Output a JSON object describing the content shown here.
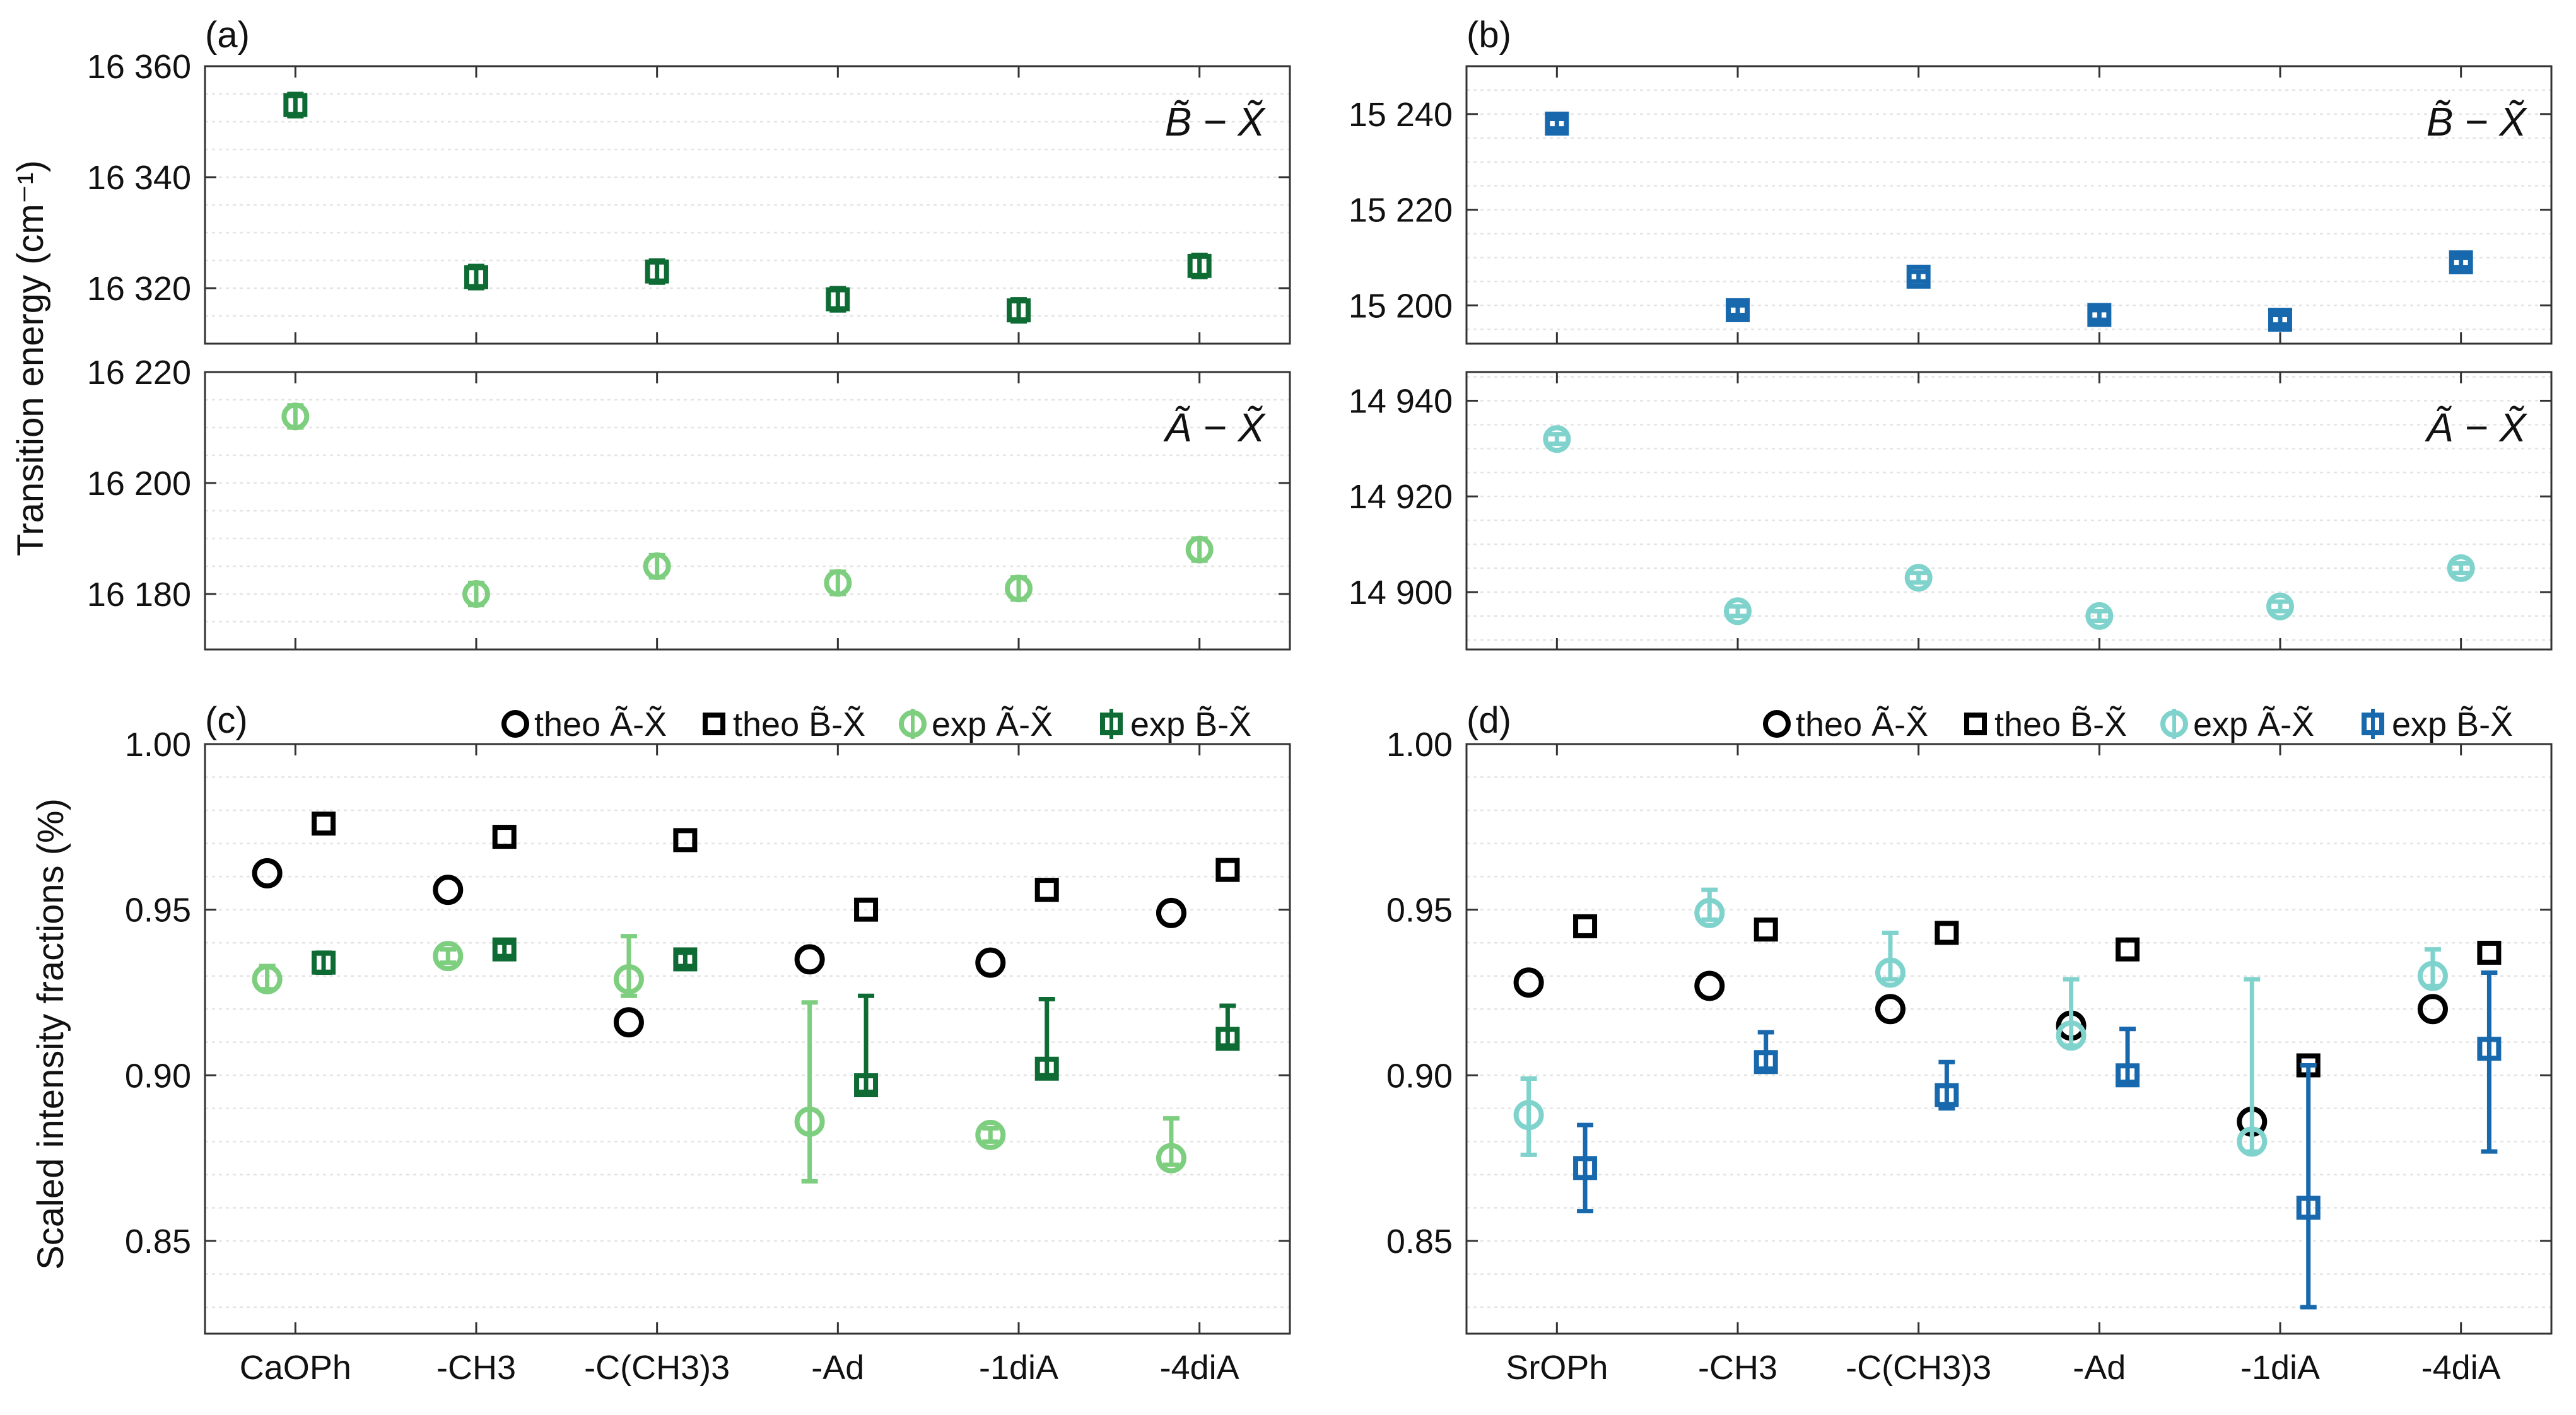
{
  "colors": {
    "ca_B": "#0e6b34",
    "ca_A": "#7dce7f",
    "sr_B": "#1768ac",
    "sr_A": "#7fd3cc",
    "theo": "#000000",
    "grid": "#e4e4e4",
    "axis": "#333333"
  },
  "chart_data": [
    {
      "id": "a",
      "panel_label": "(a)",
      "type": "scatter",
      "ylabel": "Transition energy (cm⁻¹)",
      "categories": [
        "CaOPh",
        "-CH3",
        "-C(CH3)3",
        "-Ad",
        "-1diA",
        "-4diA"
      ],
      "subplots": [
        {
          "annotation": "B̃ − X̃",
          "ylim": [
            16310,
            16360
          ],
          "yticks": [
            16320,
            16340,
            16360
          ],
          "ytick_labels": [
            "16 320",
            "16 340",
            "16 360"
          ],
          "series": [
            {
              "name": "exp B̃-X̃",
              "marker": "square",
              "color": "ca_B",
              "values": [
                16353,
                16322,
                16323,
                16318,
                16316,
                16324
              ],
              "err": [
                2,
                2,
                2,
                2,
                2,
                2
              ]
            }
          ]
        },
        {
          "annotation": "Ã − X̃",
          "ylim": [
            16170,
            16220
          ],
          "yticks": [
            16180,
            16200,
            16220
          ],
          "ytick_labels": [
            "16 180",
            "16 200",
            "16 220"
          ],
          "series": [
            {
              "name": "exp Ã-X̃",
              "marker": "circle",
              "color": "ca_A",
              "values": [
                16212,
                16180,
                16185,
                16182,
                16181,
                16188
              ],
              "err": [
                2,
                2,
                2,
                2,
                2,
                2
              ]
            }
          ]
        }
      ]
    },
    {
      "id": "b",
      "panel_label": "(b)",
      "type": "scatter",
      "categories": [
        "SrOPh",
        "-CH3",
        "-C(CH3)3",
        "-Ad",
        "-1diA",
        "-4diA"
      ],
      "subplots": [
        {
          "annotation": "B̃ − X̃",
          "ylim": [
            15192,
            15250
          ],
          "yticks": [
            15200,
            15220,
            15240
          ],
          "ytick_labels": [
            "15 200",
            "15 220",
            "15 240"
          ],
          "series": [
            {
              "name": "exp B̃-X̃",
              "marker": "square",
              "color": "sr_B",
              "values": [
                15238,
                15199,
                15206,
                15198,
                15197,
                15209
              ],
              "err": [
                1,
                1,
                1,
                1,
                1,
                1
              ]
            }
          ]
        },
        {
          "annotation": "Ã − X̃",
          "ylim": [
            14888,
            14946
          ],
          "yticks": [
            14900,
            14920,
            14940
          ],
          "ytick_labels": [
            "14 900",
            "14 920",
            "14 940"
          ],
          "series": [
            {
              "name": "exp Ã-X̃",
              "marker": "circle",
              "color": "sr_A",
              "values": [
                14932,
                14896,
                14903,
                14895,
                14897,
                14905
              ],
              "err": [
                1,
                1,
                1,
                1,
                1,
                1
              ]
            }
          ]
        }
      ]
    },
    {
      "id": "c",
      "panel_label": "(c)",
      "type": "scatter",
      "ylabel": "Scaled intensity fractions (%)",
      "categories": [
        "CaOPh",
        "-CH3",
        "-C(CH3)3",
        "-Ad",
        "-1diA",
        "-4diA"
      ],
      "ylim": [
        0.822,
        1.0
      ],
      "yticks": [
        0.85,
        0.9,
        0.95,
        1.0
      ],
      "ytick_labels": [
        "0.85",
        "0.90",
        "0.95",
        "1.00"
      ],
      "series": [
        {
          "name": "theo Ã-X̃",
          "marker": "circle",
          "color": "theo",
          "offset": -0.06,
          "values": [
            0.961,
            0.956,
            0.916,
            0.935,
            0.934,
            0.949
          ]
        },
        {
          "name": "theo B̃-X̃",
          "marker": "square",
          "color": "theo",
          "offset": 0.06,
          "values": [
            0.976,
            0.972,
            0.971,
            0.95,
            0.956,
            0.962
          ]
        },
        {
          "name": "exp Ã-X̃",
          "marker": "circle",
          "color": "ca_A",
          "offset": -0.06,
          "values": [
            0.929,
            0.936,
            0.929,
            0.886,
            0.882,
            0.875
          ],
          "err_low": [
            0.003,
            0.002,
            0.005,
            0.018,
            0.002,
            0.002
          ],
          "err_high": [
            0.004,
            0.002,
            0.013,
            0.036,
            0.002,
            0.012
          ]
        },
        {
          "name": "exp B̃-X̃",
          "marker": "square",
          "color": "ca_B",
          "offset": 0.06,
          "values": [
            0.934,
            0.938,
            0.935,
            0.897,
            0.902,
            0.911
          ],
          "err_low": [
            0.003,
            0.002,
            0.002,
            0.002,
            0.002,
            0.002
          ],
          "err_high": [
            0.003,
            0.002,
            0.002,
            0.027,
            0.021,
            0.01
          ]
        }
      ]
    },
    {
      "id": "d",
      "panel_label": "(d)",
      "type": "scatter",
      "categories": [
        "SrOPh",
        "-CH3",
        "-C(CH3)3",
        "-Ad",
        "-1diA",
        "-4diA"
      ],
      "ylim": [
        0.822,
        1.0
      ],
      "yticks": [
        0.85,
        0.9,
        0.95,
        1.0
      ],
      "ytick_labels": [
        "0.85",
        "0.90",
        "0.95",
        "1.00"
      ],
      "series": [
        {
          "name": "theo Ã-X̃",
          "marker": "circle",
          "color": "theo",
          "offset": -0.06,
          "values": [
            0.928,
            0.927,
            0.92,
            0.915,
            0.886,
            0.92
          ]
        },
        {
          "name": "theo B̃-X̃",
          "marker": "square",
          "color": "theo",
          "offset": 0.06,
          "values": [
            0.945,
            0.944,
            0.943,
            0.938,
            0.903,
            0.937
          ]
        },
        {
          "name": "exp Ã-X̃",
          "marker": "circle",
          "color": "sr_A",
          "offset": -0.06,
          "values": [
            0.888,
            0.949,
            0.931,
            0.912,
            0.88,
            0.93
          ],
          "err_low": [
            0.012,
            0.002,
            0.002,
            0.003,
            0.003,
            0.003
          ],
          "err_high": [
            0.011,
            0.007,
            0.012,
            0.017,
            0.049,
            0.008
          ]
        },
        {
          "name": "exp B̃-X̃",
          "marker": "square",
          "color": "sr_B",
          "offset": 0.06,
          "values": [
            0.872,
            0.904,
            0.894,
            0.9,
            0.86,
            0.908
          ],
          "err_low": [
            0.013,
            0.002,
            0.004,
            0.002,
            0.03,
            0.031
          ],
          "err_high": [
            0.013,
            0.009,
            0.01,
            0.014,
            0.043,
            0.023
          ]
        }
      ]
    }
  ]
}
